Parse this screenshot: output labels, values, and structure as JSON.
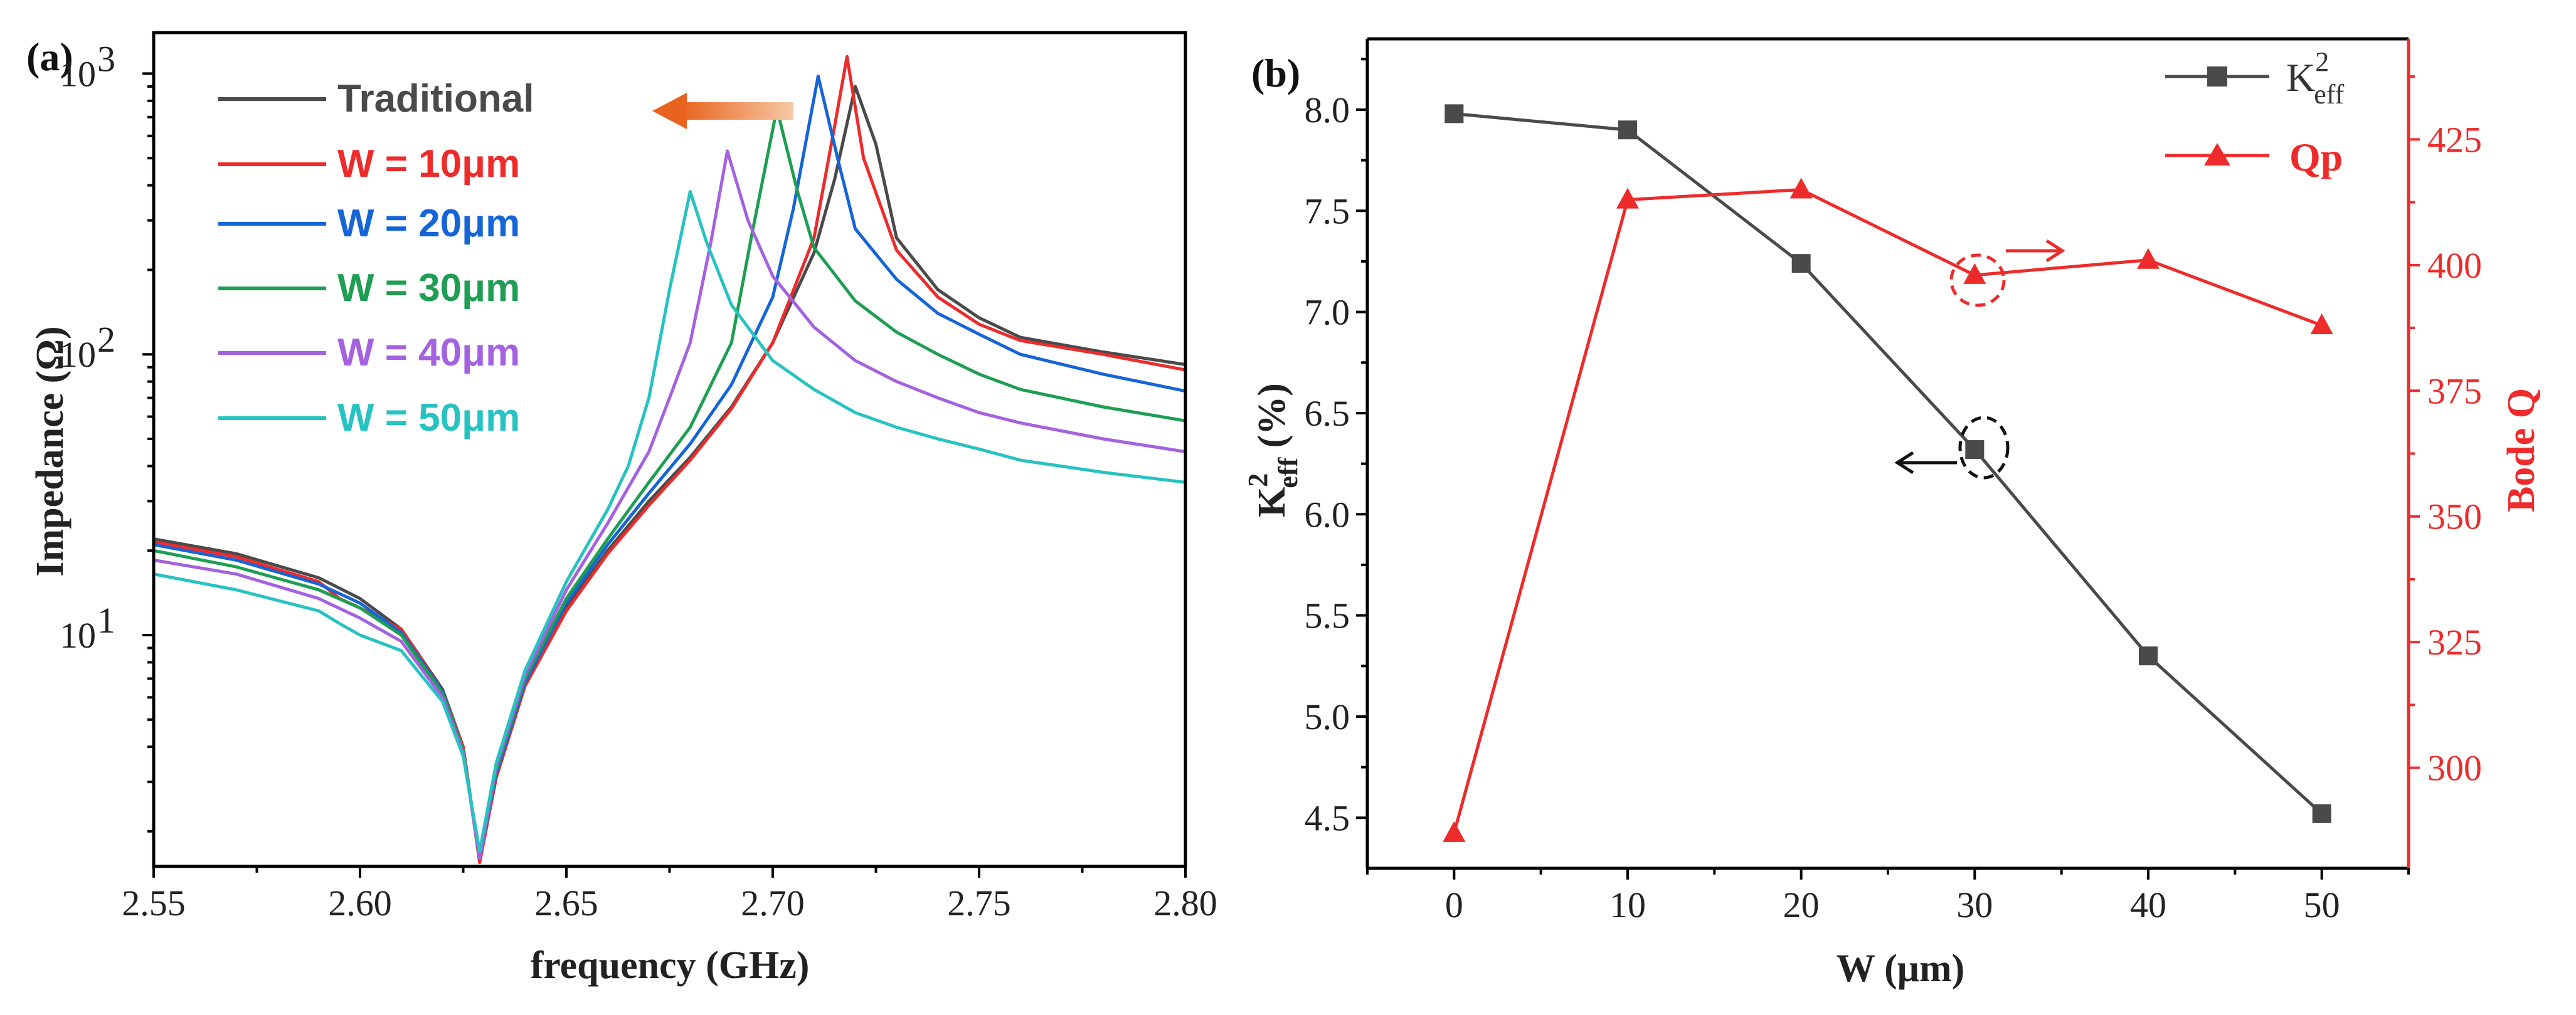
{
  "panels": {
    "a_label": "(a)",
    "b_label": "(b)"
  },
  "chart_data": [
    {
      "type": "line",
      "panel": "(a)",
      "xlabel": "frequency (GHz)",
      "ylabel": "Impedance (Ω)",
      "yscale": "log",
      "xlim": [
        2.55,
        2.8
      ],
      "ylim": [
        1.5,
        1400
      ],
      "x_ticks": [
        "2.55",
        "2.60",
        "2.65",
        "2.70",
        "2.75",
        "2.80"
      ],
      "y_ticks": [
        "10",
        "10",
        "10"
      ],
      "y_tick_exponents": [
        "1",
        "2",
        "3"
      ],
      "legend_position": "top-left",
      "series": [
        {
          "name": "Traditional",
          "color": "#4a4a4a",
          "x": [
            2.55,
            2.57,
            2.59,
            2.6,
            2.61,
            2.62,
            2.625,
            2.629,
            2.633,
            2.64,
            2.65,
            2.66,
            2.67,
            2.68,
            2.69,
            2.7,
            2.71,
            2.715,
            2.72,
            2.725,
            2.73,
            2.74,
            2.75,
            2.76,
            2.78,
            2.8
          ],
          "y": [
            22,
            19.5,
            16,
            13.5,
            10.5,
            6.4,
            4.0,
            1.55,
            3.2,
            6.7,
            12.5,
            20,
            30,
            43,
            65,
            110,
            230,
            420,
            900,
            560,
            260,
            170,
            135,
            115,
            102,
            92
          ]
        },
        {
          "name": "W = 10μm",
          "color": "#ee2b2b",
          "x": [
            2.55,
            2.57,
            2.59,
            2.595,
            2.6,
            2.61,
            2.62,
            2.625,
            2.629,
            2.633,
            2.64,
            2.65,
            2.66,
            2.67,
            2.68,
            2.69,
            2.7,
            2.71,
            2.715,
            2.718,
            2.722,
            2.73,
            2.74,
            2.75,
            2.76,
            2.78,
            2.8
          ],
          "y": [
            21.5,
            19,
            15.5,
            13.5,
            12.5,
            10.5,
            6.3,
            4.0,
            1.55,
            3.1,
            6.6,
            12.2,
            19.5,
            29,
            42,
            64,
            110,
            260,
            650,
            1150,
            500,
            235,
            160,
            128,
            112,
            100,
            88
          ]
        },
        {
          "name": "W = 20μm",
          "color": "#1565d8",
          "x": [
            2.55,
            2.57,
            2.59,
            2.6,
            2.61,
            2.62,
            2.625,
            2.629,
            2.633,
            2.64,
            2.65,
            2.66,
            2.67,
            2.68,
            2.69,
            2.7,
            2.705,
            2.711,
            2.716,
            2.72,
            2.73,
            2.74,
            2.75,
            2.76,
            2.78,
            2.8
          ],
          "y": [
            21,
            18.5,
            15.2,
            13,
            10.2,
            6.3,
            3.9,
            1.6,
            3.2,
            6.8,
            13,
            21,
            32,
            48,
            78,
            160,
            330,
            980,
            480,
            280,
            185,
            140,
            118,
            100,
            85,
            74
          ]
        },
        {
          "name": "W = 30μm",
          "color": "#1e9e52",
          "x": [
            2.55,
            2.57,
            2.59,
            2.6,
            2.61,
            2.62,
            2.625,
            2.629,
            2.633,
            2.64,
            2.65,
            2.66,
            2.67,
            2.68,
            2.69,
            2.695,
            2.701,
            2.706,
            2.71,
            2.72,
            2.73,
            2.74,
            2.75,
            2.76,
            2.78,
            2.8
          ],
          "y": [
            20,
            17.5,
            14.5,
            12.5,
            10,
            6.2,
            3.9,
            1.6,
            3.3,
            7.0,
            13.5,
            22,
            35,
            55,
            110,
            270,
            750,
            380,
            240,
            155,
            120,
            100,
            85,
            75,
            65,
            58
          ]
        },
        {
          "name": "W = 40μm",
          "color": "#a461e0",
          "x": [
            2.55,
            2.57,
            2.59,
            2.6,
            2.61,
            2.62,
            2.625,
            2.629,
            2.633,
            2.64,
            2.65,
            2.66,
            2.67,
            2.675,
            2.68,
            2.685,
            2.689,
            2.694,
            2.7,
            2.71,
            2.72,
            2.73,
            2.74,
            2.75,
            2.76,
            2.78,
            2.8
          ],
          "y": [
            18.5,
            16.5,
            13.5,
            11.5,
            9.5,
            6.0,
            3.8,
            1.6,
            3.4,
            7.2,
            14.5,
            25,
            45,
            70,
            110,
            250,
            530,
            300,
            190,
            125,
            95,
            80,
            70,
            62,
            57,
            50,
            45
          ]
        },
        {
          "name": "W = 50μm",
          "color": "#27c2c2",
          "x": [
            2.55,
            2.57,
            2.59,
            2.595,
            2.6,
            2.61,
            2.62,
            2.625,
            2.629,
            2.633,
            2.64,
            2.65,
            2.66,
            2.665,
            2.67,
            2.675,
            2.68,
            2.684,
            2.69,
            2.7,
            2.71,
            2.72,
            2.73,
            2.74,
            2.75,
            2.76,
            2.78,
            2.8
          ],
          "y": [
            16.5,
            14.5,
            12.2,
            11,
            10,
            8.8,
            5.8,
            3.7,
            1.7,
            3.5,
            7.5,
            15.5,
            28,
            40,
            70,
            170,
            380,
            250,
            150,
            95,
            75,
            62,
            55,
            50,
            46,
            42,
            38,
            35
          ]
        }
      ]
    },
    {
      "type": "line",
      "panel": "(b)",
      "xlabel": "W (μm)",
      "ylabel_base": "K",
      "ylabel_sup": "2",
      "ylabel_sub": "eff",
      "ylabel_rest": " (%)",
      "y2label": "Bode Q",
      "xlim": [
        -5,
        55
      ],
      "ylim": [
        4.25,
        8.35
      ],
      "y2lim": [
        280,
        445
      ],
      "x_ticks": [
        "0",
        "10",
        "20",
        "30",
        "40",
        "50"
      ],
      "y_ticks": [
        "4.5",
        "5.0",
        "5.5",
        "6.0",
        "6.5",
        "7.0",
        "7.5",
        "8.0"
      ],
      "y2_ticks": [
        "300",
        "325",
        "350",
        "375",
        "400",
        "425"
      ],
      "legend_position": "top-right",
      "series": [
        {
          "name": "K",
          "name_sup": "2",
          "name_sub": "eff",
          "axis": "left",
          "marker": "square",
          "color": "#4a4a4a",
          "x": [
            0,
            10,
            20,
            30,
            40,
            50
          ],
          "y": [
            7.98,
            7.9,
            7.24,
            6.32,
            5.3,
            4.52
          ]
        },
        {
          "name": "Qp",
          "axis": "right",
          "marker": "triangle",
          "color": "#ee2b2b",
          "x": [
            0,
            10,
            20,
            30,
            40,
            50
          ],
          "y": [
            287,
            413,
            415,
            398,
            401,
            388
          ]
        }
      ],
      "annotations": [
        "dashed circle at W=30 on Keff with arrow pointing left",
        "dashed circle at W=30 on Qp with arrow pointing right"
      ]
    }
  ]
}
